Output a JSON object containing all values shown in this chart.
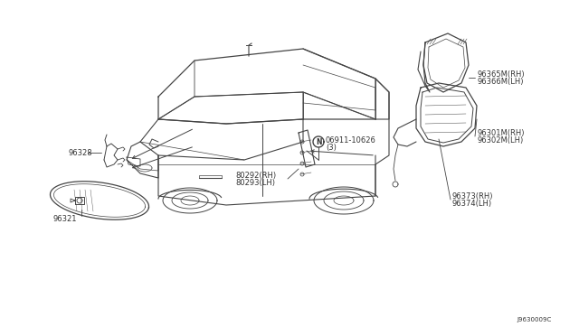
{
  "background_color": "#ffffff",
  "line_color": "#444444",
  "text_color": "#333333",
  "part_numbers": {
    "rearview_mirror_bracket": "96328",
    "rearview_mirror": "96321",
    "door_sash_rh": "80292(RH)",
    "door_sash_lh": "80293(LH)",
    "bolt_label": "06911-10626",
    "bolt_qty": "(3)",
    "mirror_glass_rh": "96365M(RH)",
    "mirror_glass_lh": "96366M(LH)",
    "mirror_assy_rh": "96301M(RH)",
    "mirror_assy_lh": "96302M(LH)",
    "mirror_base_rh": "96373(RH)",
    "mirror_base_lh": "96374(LH)",
    "diagram_code": "J9630009C"
  },
  "font_size": 6,
  "small_font_size": 5
}
